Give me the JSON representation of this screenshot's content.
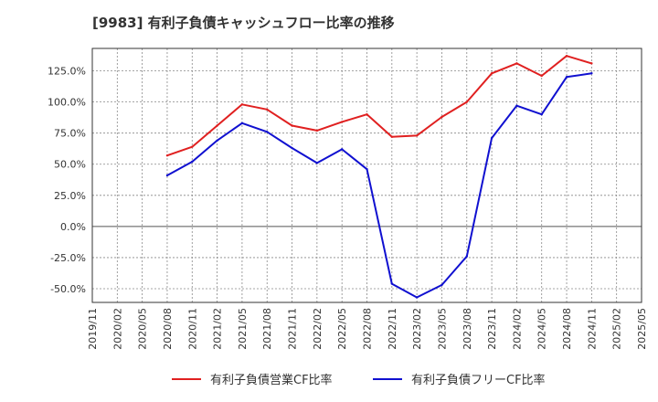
{
  "title": "[9983]  有利子負債キャッシュフロー比率の推移",
  "chart_data": {
    "type": "line",
    "title": "[9983]  有利子負債キャッシュフロー比率の推移",
    "xlabel": "",
    "ylabel": "",
    "x_ticks": [
      "2019/11",
      "2020/02",
      "2020/05",
      "2020/08",
      "2020/11",
      "2021/02",
      "2021/05",
      "2021/08",
      "2021/11",
      "2022/02",
      "2022/05",
      "2022/08",
      "2022/11",
      "2023/02",
      "2023/05",
      "2023/08",
      "2023/11",
      "2024/02",
      "2024/05",
      "2024/08",
      "2024/11",
      "2025/02",
      "2025/05"
    ],
    "y_ticks": [
      125,
      100,
      75,
      50,
      25,
      0,
      -25,
      -50
    ],
    "y_tick_labels": [
      "125.0%",
      "100.0%",
      "75.0%",
      "50.0%",
      "25.0%",
      "0.0%",
      "-25.0%",
      "-50.0%"
    ],
    "ylim": [
      -61,
      143
    ],
    "grid": true,
    "legend_position": "bottom",
    "series": [
      {
        "name": "有利子負債営業CF比率",
        "color": "#e02020",
        "x": [
          "2020/08",
          "2020/11",
          "2021/02",
          "2021/05",
          "2021/08",
          "2021/11",
          "2022/02",
          "2022/05",
          "2022/08",
          "2022/11",
          "2023/02",
          "2023/05",
          "2023/08",
          "2023/11",
          "2024/02",
          "2024/05",
          "2024/08",
          "2024/11"
        ],
        "values": [
          57,
          64,
          81,
          98,
          94,
          81,
          77,
          84,
          90,
          72,
          73,
          88,
          100,
          123,
          131,
          121,
          137,
          131
        ]
      },
      {
        "name": "有利子負債フリーCF比率",
        "color": "#1010d0",
        "x": [
          "2020/08",
          "2020/11",
          "2021/02",
          "2021/05",
          "2021/08",
          "2021/11",
          "2022/02",
          "2022/05",
          "2022/08",
          "2022/11",
          "2023/02",
          "2023/05",
          "2023/08",
          "2023/11",
          "2024/02",
          "2024/05",
          "2024/08",
          "2024/11"
        ],
        "values": [
          41,
          52,
          69,
          83,
          76,
          63,
          51,
          62,
          46,
          -46,
          -57,
          -47,
          -24,
          71,
          97,
          90,
          120,
          123
        ]
      }
    ]
  }
}
